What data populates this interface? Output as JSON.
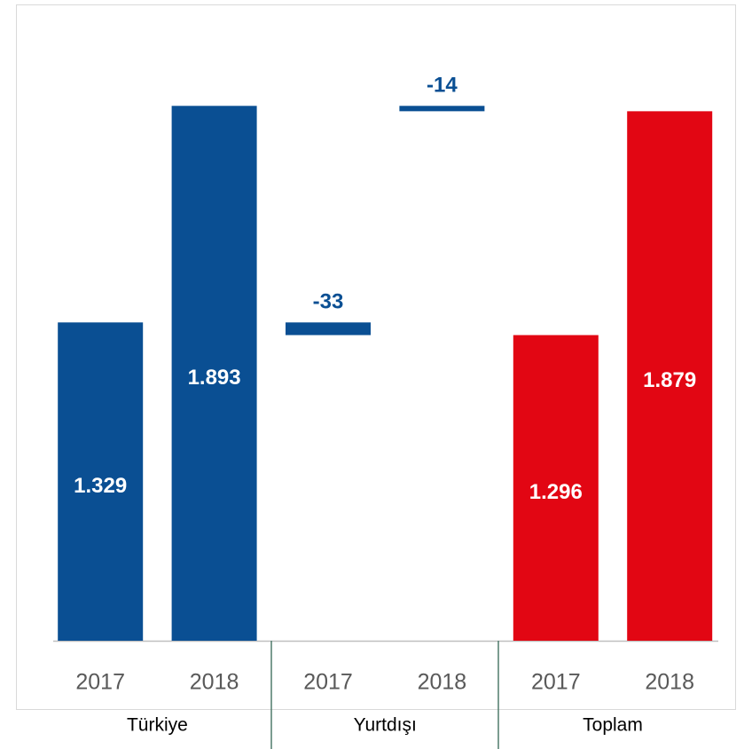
{
  "chart_data": {
    "type": "bar",
    "groups": [
      "Türkiye",
      "Yurtdışı",
      "Toplam"
    ],
    "categories": [
      "2017",
      "2018",
      "2017",
      "2018",
      "2017",
      "2018"
    ],
    "values": [
      1329,
      1893,
      -33,
      -14,
      1296,
      1879
    ],
    "value_labels": [
      "1.329",
      "1.893",
      "-33",
      "-14",
      "1.296",
      "1.879"
    ],
    "colors": [
      "#0a4f93",
      "#0a4f93",
      "#0a4f93",
      "#0a4f93",
      "#e20613",
      "#e20613"
    ],
    "ylim": [
      500,
      2000
    ]
  }
}
